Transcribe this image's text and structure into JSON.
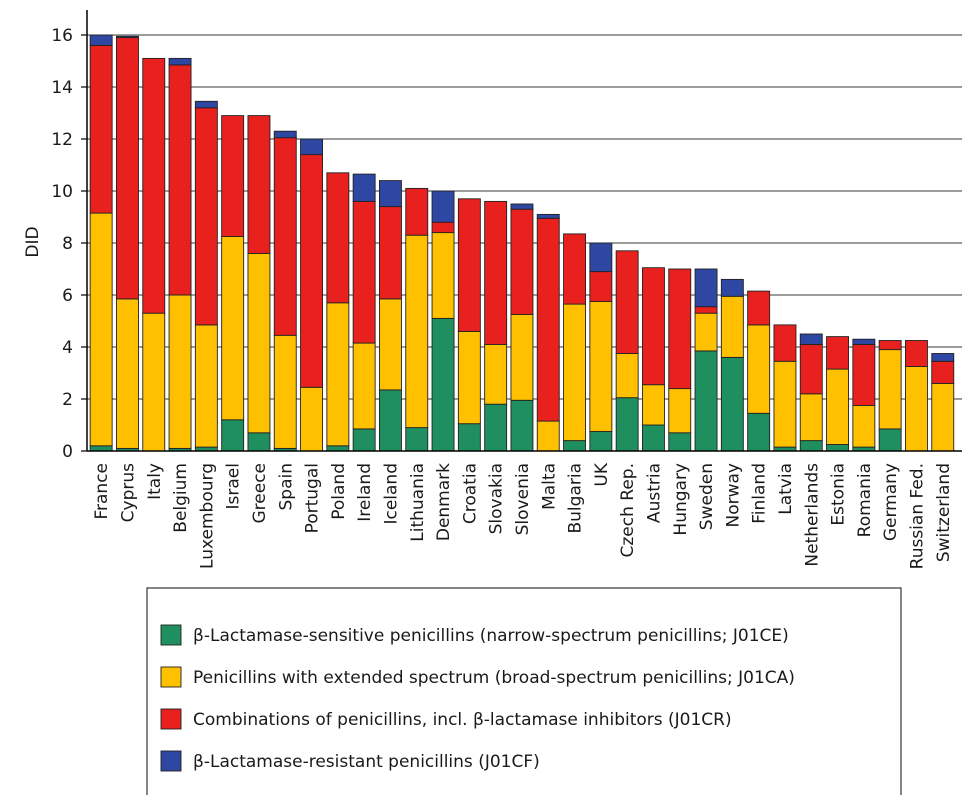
{
  "chart_data": {
    "type": "bar",
    "stacked": true,
    "ylabel": "DID",
    "ylim": [
      0,
      16
    ],
    "yticks": [
      0,
      2,
      4,
      6,
      8,
      10,
      12,
      14,
      16
    ],
    "grid": true,
    "legend_position": "bottom",
    "categories": [
      "France",
      "Cyprus",
      "Italy",
      "Belgium",
      "Luxembourg",
      "Israel",
      "Greece",
      "Spain",
      "Portugal",
      "Poland",
      "Ireland",
      "Iceland",
      "Lithuania",
      "Denmark",
      "Croatia",
      "Slovakia",
      "Slovenia",
      "Malta",
      "Bulgaria",
      "UK",
      "Czech Rep.",
      "Austria",
      "Hungary",
      "Sweden",
      "Norway",
      "Finland",
      "Latvia",
      "Netherlands",
      "Estonia",
      "Romania",
      "Germany",
      "Russian Fed.",
      "Switzerland"
    ],
    "series": [
      {
        "name": "β-Lactamase-sensitive penicillins (narrow-spectrum penicillins; J01CE)",
        "color": "#1f8f5f",
        "values": [
          0.2,
          0.1,
          0.0,
          0.1,
          0.15,
          1.2,
          0.7,
          0.1,
          0.0,
          0.2,
          0.85,
          2.35,
          0.9,
          5.1,
          1.05,
          1.8,
          1.95,
          0.0,
          0.4,
          0.75,
          2.05,
          1.0,
          0.7,
          3.85,
          3.6,
          1.45,
          0.15,
          0.4,
          0.25,
          0.15,
          0.85,
          0.0,
          0.0
        ]
      },
      {
        "name": "Penicillins with extended spectrum (broad-spectrum penicillins; J01CA)",
        "color": "#ffc000",
        "values": [
          8.95,
          5.75,
          5.3,
          5.9,
          4.7,
          7.05,
          6.9,
          4.35,
          2.45,
          5.5,
          3.3,
          3.5,
          7.4,
          3.3,
          3.55,
          2.3,
          3.3,
          1.15,
          5.25,
          5.0,
          1.7,
          1.55,
          1.7,
          1.45,
          2.35,
          3.4,
          3.3,
          1.8,
          2.9,
          1.6,
          3.05,
          3.25,
          2.6
        ]
      },
      {
        "name": "Combinations of penicillins, incl. β-lactamase inhibitors (J01CR)",
        "color": "#e8201e",
        "values": [
          6.45,
          10.05,
          9.8,
          8.85,
          8.35,
          4.65,
          5.3,
          7.6,
          8.95,
          5.0,
          5.45,
          3.55,
          1.8,
          0.4,
          5.1,
          5.5,
          4.05,
          7.8,
          2.7,
          1.15,
          3.95,
          4.5,
          4.6,
          0.25,
          0.0,
          1.3,
          1.4,
          1.9,
          1.25,
          2.35,
          0.35,
          1.0,
          0.85
        ]
      },
      {
        "name": "β-Lactamase-resistant penicillins (J01CF)",
        "color": "#2e47a3",
        "values": [
          0.4,
          0.05,
          0.0,
          0.25,
          0.25,
          0.0,
          0.0,
          0.25,
          0.6,
          0.0,
          1.05,
          1.0,
          0.0,
          1.2,
          0.0,
          0.0,
          0.2,
          0.15,
          0.0,
          1.1,
          0.0,
          0.0,
          0.0,
          1.45,
          0.65,
          0.0,
          0.0,
          0.4,
          0.0,
          0.2,
          0.0,
          0.0,
          0.3
        ]
      }
    ]
  }
}
